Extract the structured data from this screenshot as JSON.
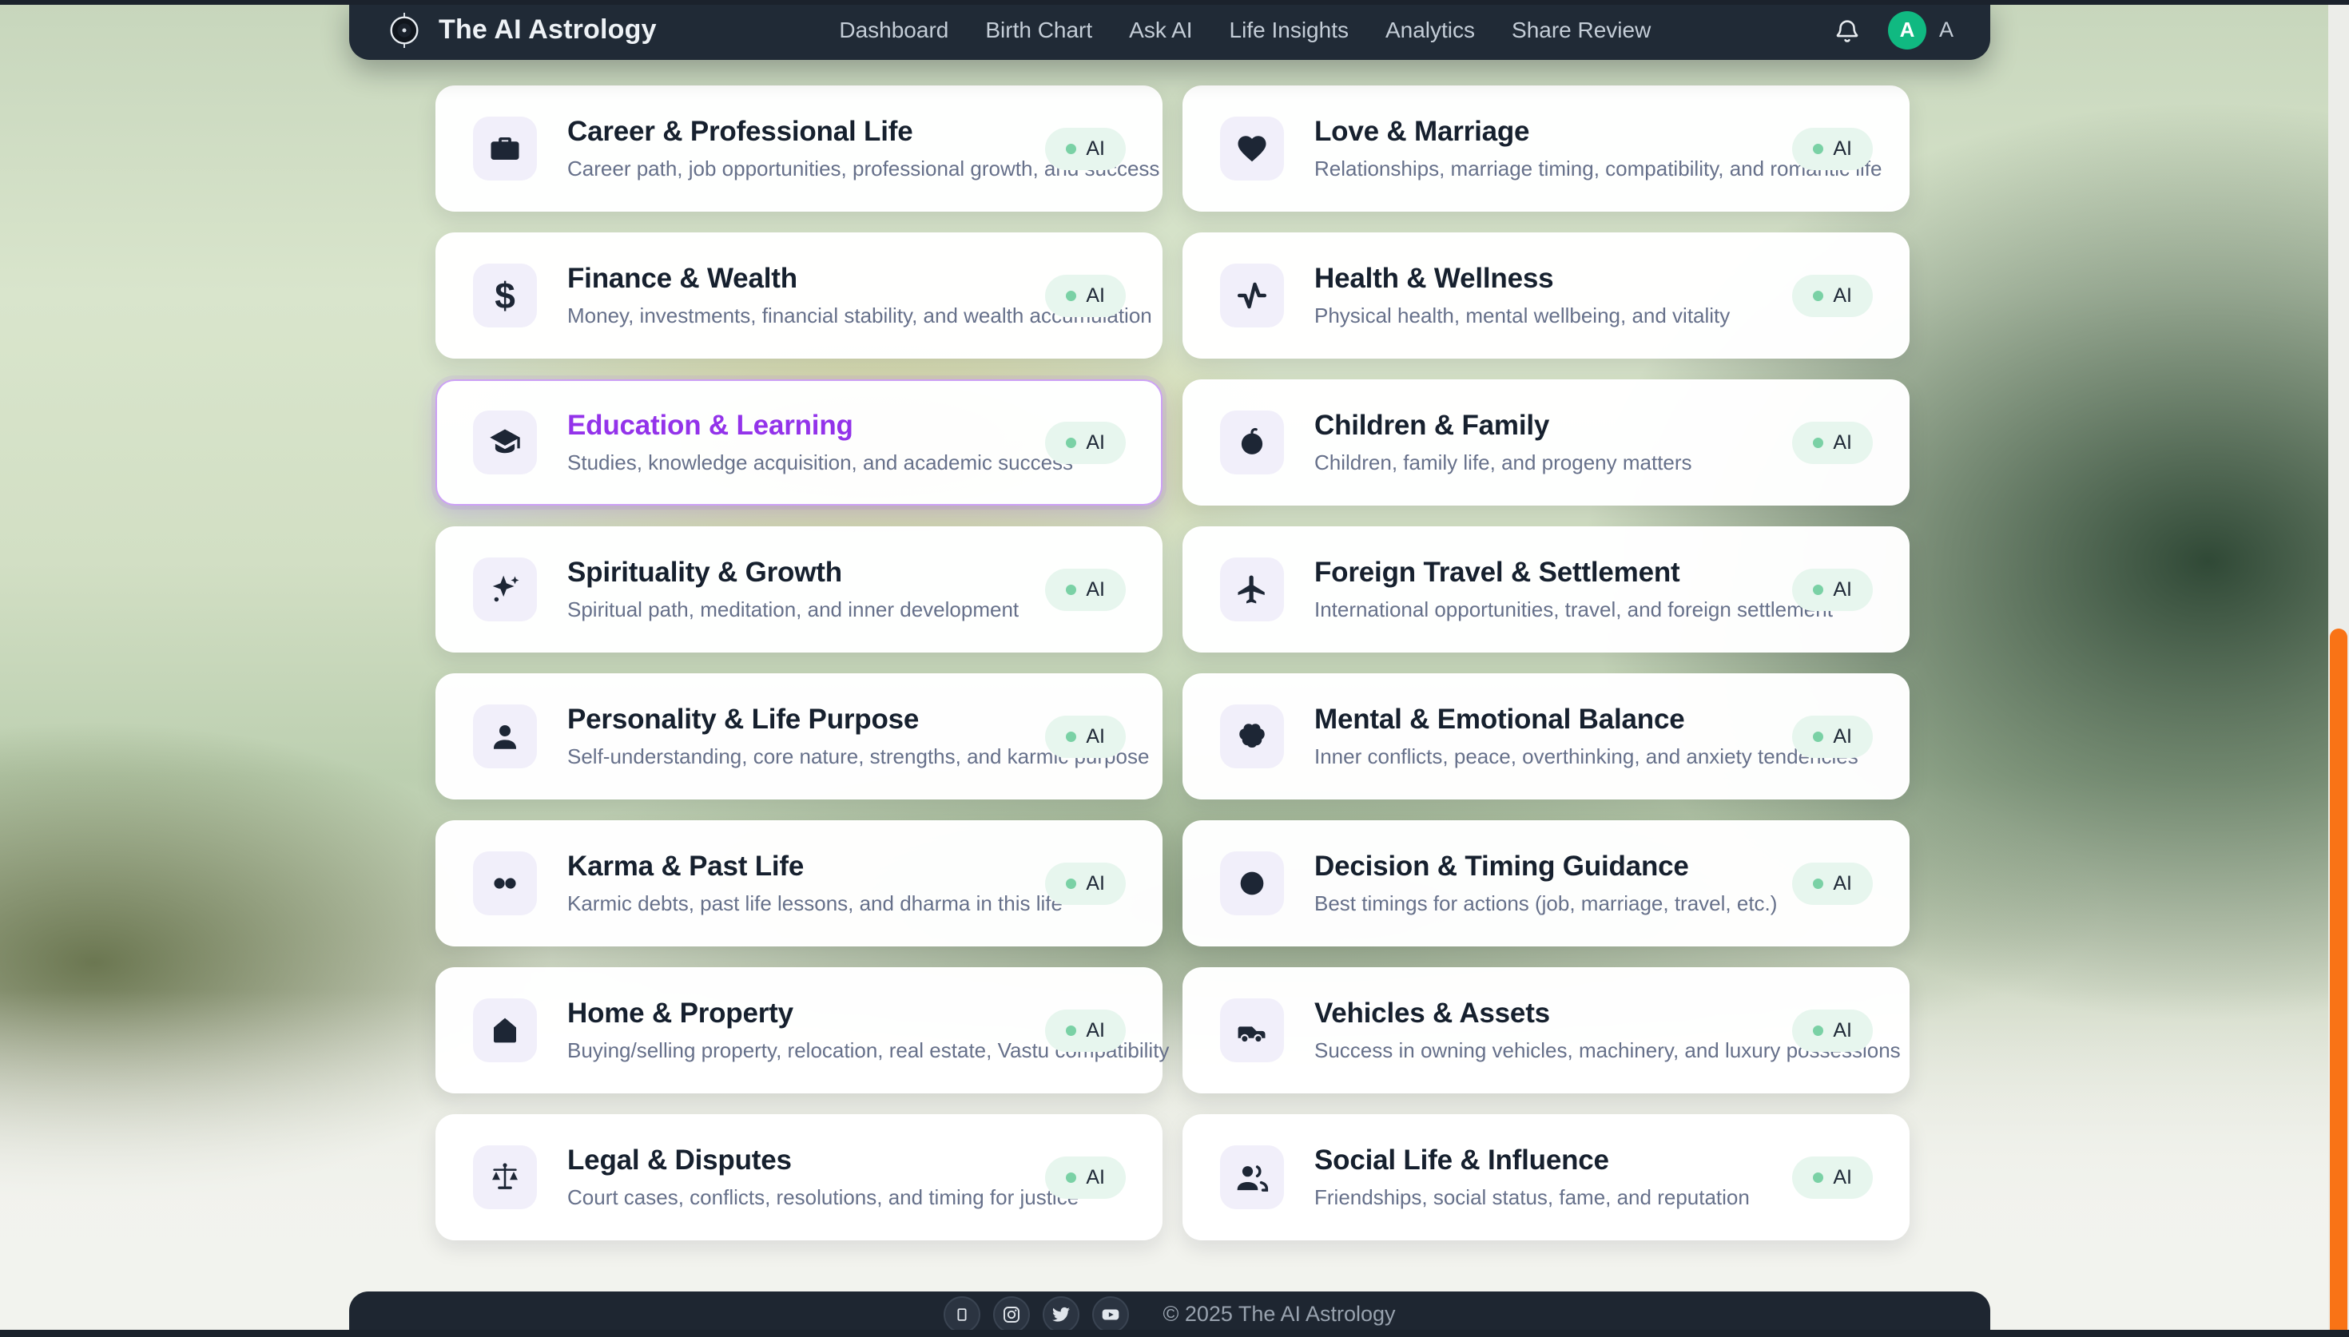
{
  "app": {
    "title": "The AI Astrology"
  },
  "navbar": {
    "links": [
      "Dashboard",
      "Birth Chart",
      "Ask AI",
      "Life Insights",
      "Analytics",
      "Share Review"
    ],
    "avatar_initial": "A",
    "user_label": "A"
  },
  "badge": {
    "label": "AI"
  },
  "cards": [
    {
      "title": "Career & Professional Life",
      "description": "Career path, job opportunities, professional growth, and success",
      "icon": "briefcase",
      "highlighted": false
    },
    {
      "title": "Love & Marriage",
      "description": "Relationships, marriage timing, compatibility, and romantic life",
      "icon": "heart",
      "highlighted": false
    },
    {
      "title": "Finance & Wealth",
      "description": "Money, investments, financial stability, and wealth accumulation",
      "icon": "dollar",
      "highlighted": false
    },
    {
      "title": "Health & Wellness",
      "description": "Physical health, mental wellbeing, and vitality",
      "icon": "activity",
      "highlighted": false
    },
    {
      "title": "Education & Learning",
      "description": "Studies, knowledge acquisition, and academic success",
      "icon": "graduation-cap",
      "highlighted": true
    },
    {
      "title": "Children & Family",
      "description": "Children, family life, and progeny matters",
      "icon": "baby",
      "highlighted": false
    },
    {
      "title": "Spirituality & Growth",
      "description": "Spiritual path, meditation, and inner development",
      "icon": "sparkles",
      "highlighted": false
    },
    {
      "title": "Foreign Travel & Settlement",
      "description": "International opportunities, travel, and foreign settlement",
      "icon": "plane",
      "highlighted": false
    },
    {
      "title": "Personality & Life Purpose",
      "description": "Self-understanding, core nature, strengths, and karmic purpose",
      "icon": "user",
      "highlighted": false
    },
    {
      "title": "Mental & Emotional Balance",
      "description": "Inner conflicts, peace, overthinking, and anxiety tendencies",
      "icon": "brain",
      "highlighted": false
    },
    {
      "title": "Karma & Past Life",
      "description": "Karmic debts, past life lessons, and dharma in this life",
      "icon": "infinity",
      "highlighted": false
    },
    {
      "title": "Decision & Timing Guidance",
      "description": "Best timings for actions (job, marriage, travel, etc.)",
      "icon": "circle",
      "highlighted": false
    },
    {
      "title": "Home & Property",
      "description": "Buying/selling property, relocation, real estate, Vastu compatibility",
      "icon": "home",
      "highlighted": false
    },
    {
      "title": "Vehicles & Assets",
      "description": "Success in owning vehicles, machinery, and luxury possessions",
      "icon": "car",
      "highlighted": false
    },
    {
      "title": "Legal & Disputes",
      "description": "Court cases, conflicts, resolutions, and timing for justice",
      "icon": "scales",
      "highlighted": false
    },
    {
      "title": "Social Life & Influence",
      "description": "Friendships, social status, fame, and reputation",
      "icon": "users",
      "highlighted": false
    }
  ],
  "footer": {
    "copyright": "© 2025 The AI Astrology",
    "social_icons": [
      "square",
      "instagram",
      "twitter",
      "youtube"
    ]
  },
  "colors": {
    "navbar_bg": "#202a36",
    "accent_purple": "#9333ea",
    "badge_bg": "#e7f6ee",
    "badge_dot": "#7ad1a5",
    "avatar_bg": "#10b981",
    "card_bg": "#ffffff",
    "title_text": "#16202e",
    "description_text": "#66708a",
    "scrollbar_thumb": "#f97316"
  }
}
